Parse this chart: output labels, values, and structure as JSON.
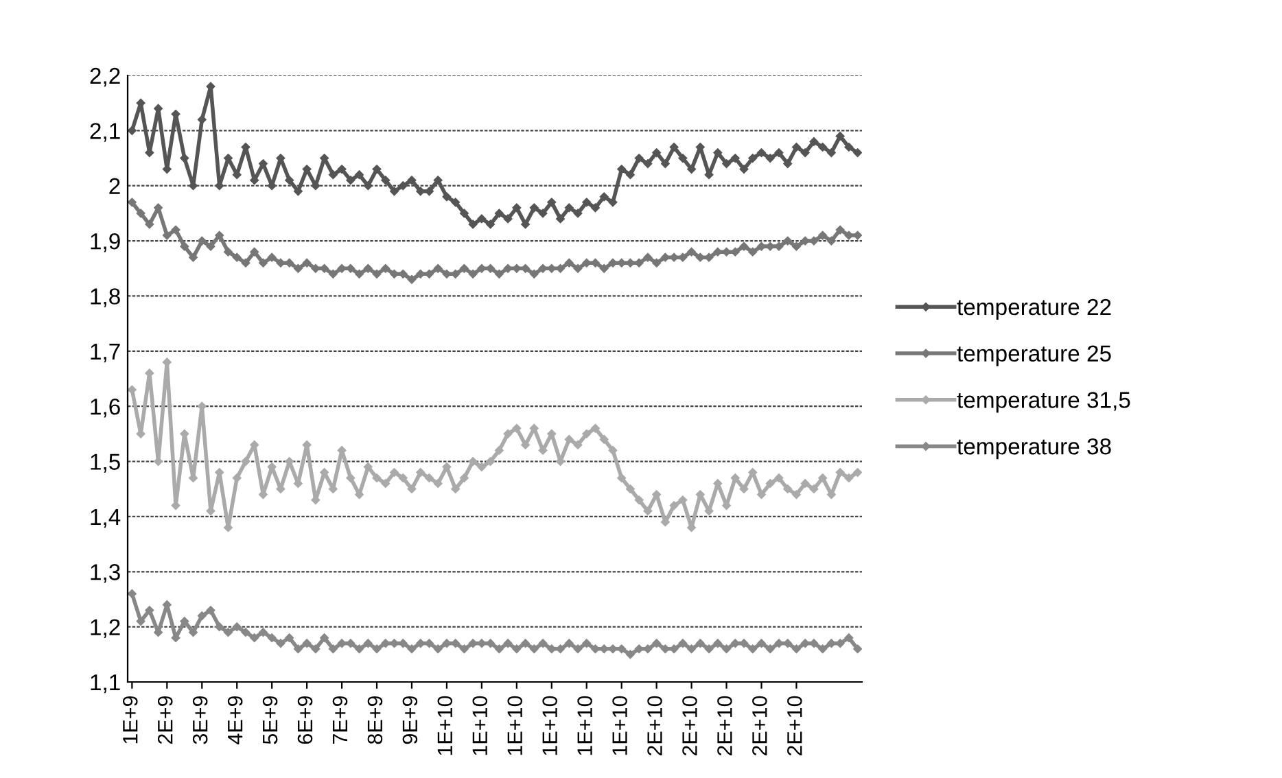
{
  "chart_data": {
    "type": "line",
    "categories": [
      "1E+9",
      null,
      null,
      null,
      "2E+9",
      null,
      null,
      null,
      "3E+9",
      null,
      null,
      null,
      "4E+9",
      null,
      null,
      null,
      "5E+9",
      null,
      null,
      null,
      "6E+9",
      null,
      null,
      null,
      "7E+9",
      null,
      null,
      null,
      "8E+9",
      null,
      null,
      null,
      "9E+9",
      null,
      null,
      null,
      "1E+10",
      null,
      null,
      null,
      "1E+10",
      null,
      null,
      null,
      "1E+10",
      null,
      null,
      null,
      "1E+10",
      null,
      null,
      null,
      "1E+10",
      null,
      null,
      null,
      "1E+10",
      null,
      null,
      null,
      "2E+10",
      null,
      null,
      null,
      "2E+10",
      null,
      null,
      null,
      "2E+10",
      null,
      null,
      null,
      "2E+10",
      null,
      null,
      null,
      "2E+10",
      null,
      null,
      null,
      null,
      null,
      null,
      null
    ],
    "series": [
      {
        "name": "temperature 22",
        "color": "#555555",
        "values": [
          2.1,
          2.15,
          2.06,
          2.14,
          2.03,
          2.13,
          2.05,
          2.0,
          2.12,
          2.18,
          2.0,
          2.05,
          2.02,
          2.07,
          2.01,
          2.04,
          2.0,
          2.05,
          2.01,
          1.99,
          2.03,
          2.0,
          2.05,
          2.02,
          2.03,
          2.01,
          2.02,
          2.0,
          2.03,
          2.01,
          1.99,
          2.0,
          2.01,
          1.99,
          1.99,
          2.01,
          1.98,
          1.97,
          1.95,
          1.93,
          1.94,
          1.93,
          1.95,
          1.94,
          1.96,
          1.93,
          1.96,
          1.95,
          1.97,
          1.94,
          1.96,
          1.95,
          1.97,
          1.96,
          1.98,
          1.97,
          2.03,
          2.02,
          2.05,
          2.04,
          2.06,
          2.04,
          2.07,
          2.05,
          2.03,
          2.07,
          2.02,
          2.06,
          2.04,
          2.05,
          2.03,
          2.05,
          2.06,
          2.05,
          2.06,
          2.04,
          2.07,
          2.06,
          2.08,
          2.07,
          2.06,
          2.09,
          2.07,
          2.06
        ]
      },
      {
        "name": "temperature 25",
        "color": "#777777",
        "values": [
          1.97,
          1.95,
          1.93,
          1.96,
          1.91,
          1.92,
          1.89,
          1.87,
          1.9,
          1.89,
          1.91,
          1.88,
          1.87,
          1.86,
          1.88,
          1.86,
          1.87,
          1.86,
          1.86,
          1.85,
          1.86,
          1.85,
          1.85,
          1.84,
          1.85,
          1.85,
          1.84,
          1.85,
          1.84,
          1.85,
          1.84,
          1.84,
          1.83,
          1.84,
          1.84,
          1.85,
          1.84,
          1.84,
          1.85,
          1.84,
          1.85,
          1.85,
          1.84,
          1.85,
          1.85,
          1.85,
          1.84,
          1.85,
          1.85,
          1.85,
          1.86,
          1.85,
          1.86,
          1.86,
          1.85,
          1.86,
          1.86,
          1.86,
          1.86,
          1.87,
          1.86,
          1.87,
          1.87,
          1.87,
          1.88,
          1.87,
          1.87,
          1.88,
          1.88,
          1.88,
          1.89,
          1.88,
          1.89,
          1.89,
          1.89,
          1.9,
          1.89,
          1.9,
          1.9,
          1.91,
          1.9,
          1.92,
          1.91,
          1.91
        ]
      },
      {
        "name": "temperature 31,5",
        "color": "#aaaaaa",
        "values": [
          1.63,
          1.55,
          1.66,
          1.5,
          1.68,
          1.42,
          1.55,
          1.47,
          1.6,
          1.41,
          1.48,
          1.38,
          1.47,
          1.5,
          1.53,
          1.44,
          1.49,
          1.45,
          1.5,
          1.46,
          1.53,
          1.43,
          1.48,
          1.45,
          1.52,
          1.47,
          1.44,
          1.49,
          1.47,
          1.46,
          1.48,
          1.47,
          1.45,
          1.48,
          1.47,
          1.46,
          1.49,
          1.45,
          1.47,
          1.5,
          1.49,
          1.5,
          1.52,
          1.55,
          1.56,
          1.53,
          1.56,
          1.52,
          1.55,
          1.5,
          1.54,
          1.53,
          1.55,
          1.56,
          1.54,
          1.52,
          1.47,
          1.45,
          1.43,
          1.41,
          1.44,
          1.39,
          1.42,
          1.43,
          1.38,
          1.44,
          1.41,
          1.46,
          1.42,
          1.47,
          1.45,
          1.48,
          1.44,
          1.46,
          1.47,
          1.45,
          1.44,
          1.46,
          1.45,
          1.47,
          1.44,
          1.48,
          1.47,
          1.48
        ]
      },
      {
        "name": "temperature 38",
        "color": "#888888",
        "values": [
          1.26,
          1.21,
          1.23,
          1.19,
          1.24,
          1.18,
          1.21,
          1.19,
          1.22,
          1.23,
          1.2,
          1.19,
          1.2,
          1.19,
          1.18,
          1.19,
          1.18,
          1.17,
          1.18,
          1.16,
          1.17,
          1.16,
          1.18,
          1.16,
          1.17,
          1.17,
          1.16,
          1.17,
          1.16,
          1.17,
          1.17,
          1.17,
          1.16,
          1.17,
          1.17,
          1.16,
          1.17,
          1.17,
          1.16,
          1.17,
          1.17,
          1.17,
          1.16,
          1.17,
          1.16,
          1.17,
          1.16,
          1.17,
          1.16,
          1.16,
          1.17,
          1.16,
          1.17,
          1.16,
          1.16,
          1.16,
          1.16,
          1.15,
          1.16,
          1.16,
          1.17,
          1.16,
          1.16,
          1.17,
          1.16,
          1.17,
          1.16,
          1.17,
          1.16,
          1.17,
          1.17,
          1.16,
          1.17,
          1.16,
          1.17,
          1.17,
          1.16,
          1.17,
          1.17,
          1.16,
          1.17,
          1.17,
          1.18,
          1.16
        ]
      }
    ],
    "ylim": [
      1.1,
      2.2
    ],
    "yticks": [
      {
        "value": 1.1,
        "label": "1,1"
      },
      {
        "value": 1.2,
        "label": "1,2"
      },
      {
        "value": 1.3,
        "label": "1,3"
      },
      {
        "value": 1.4,
        "label": "1,4"
      },
      {
        "value": 1.5,
        "label": "1,5"
      },
      {
        "value": 1.6,
        "label": "1,6"
      },
      {
        "value": 1.7,
        "label": "1,7"
      },
      {
        "value": 1.8,
        "label": "1,8"
      },
      {
        "value": 1.9,
        "label": "1,9"
      },
      {
        "value": 2.0,
        "label": "2"
      },
      {
        "value": 2.1,
        "label": "2,1"
      },
      {
        "value": 2.2,
        "label": "2,2"
      }
    ],
    "grid": "y",
    "legend": "right",
    "marker": "diamond",
    "line_style": "solid"
  }
}
